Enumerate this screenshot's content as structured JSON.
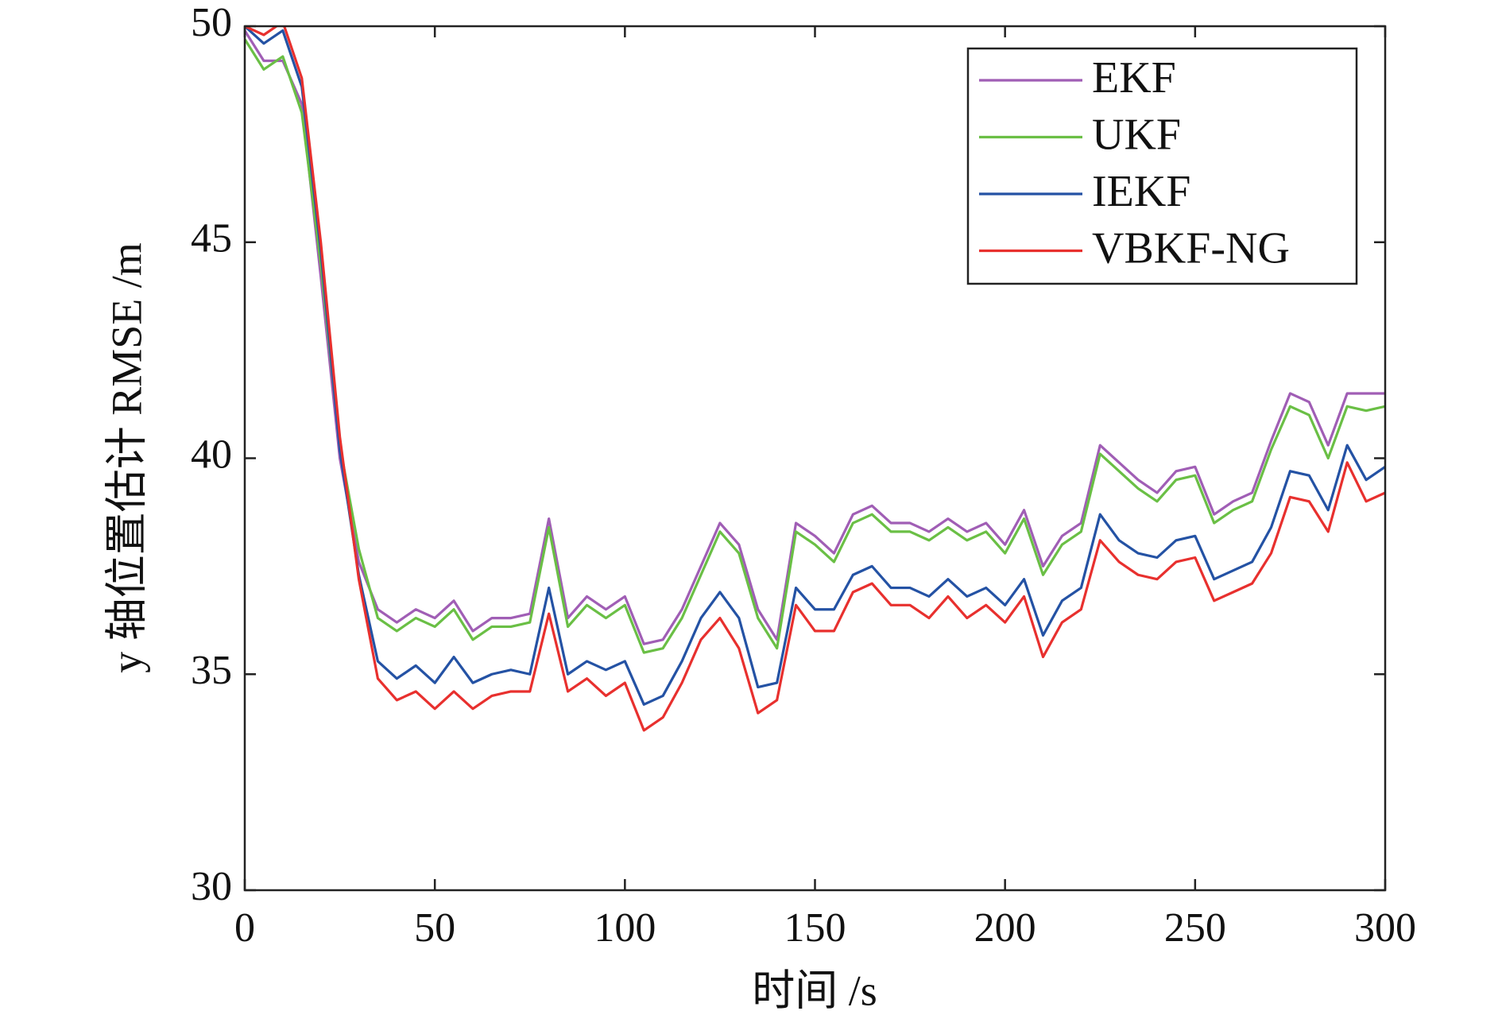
{
  "chart_data": {
    "type": "line",
    "xlabel": "时间 /s",
    "ylabel": "y 轴位置估计 RMSE /m",
    "x": [
      0,
      5,
      10,
      15,
      20,
      25,
      30,
      35,
      40,
      45,
      50,
      55,
      60,
      65,
      70,
      75,
      80,
      85,
      90,
      95,
      100,
      105,
      110,
      115,
      120,
      125,
      130,
      135,
      140,
      145,
      150,
      155,
      160,
      165,
      170,
      175,
      180,
      185,
      190,
      195,
      200,
      205,
      210,
      215,
      220,
      225,
      230,
      235,
      240,
      245,
      250,
      255,
      260,
      265,
      270,
      275,
      280,
      285,
      290,
      295,
      300
    ],
    "series": [
      {
        "name": "EKF",
        "color": "#a05eb5",
        "values": [
          49.9,
          49.2,
          49.2,
          48.2,
          44.2,
          40.0,
          37.6,
          36.5,
          36.2,
          36.5,
          36.3,
          36.7,
          36.0,
          36.3,
          36.3,
          36.4,
          38.6,
          36.3,
          36.8,
          36.5,
          36.8,
          35.7,
          35.8,
          36.5,
          37.5,
          38.5,
          38.0,
          36.5,
          35.8,
          38.5,
          38.2,
          37.8,
          38.7,
          38.9,
          38.5,
          38.5,
          38.3,
          38.6,
          38.3,
          38.5,
          38.0,
          38.8,
          37.5,
          38.2,
          38.5,
          40.3,
          39.9,
          39.5,
          39.2,
          39.7,
          39.8,
          38.7,
          39.0,
          39.2,
          40.4,
          41.5,
          41.3,
          40.3,
          41.5,
          41.5,
          41.5
        ]
      },
      {
        "name": "UKF",
        "color": "#6abf45",
        "values": [
          49.7,
          49.0,
          49.3,
          48.0,
          44.5,
          40.3,
          37.9,
          36.3,
          36.0,
          36.3,
          36.1,
          36.5,
          35.8,
          36.1,
          36.1,
          36.2,
          38.4,
          36.1,
          36.6,
          36.3,
          36.6,
          35.5,
          35.6,
          36.3,
          37.3,
          38.3,
          37.8,
          36.3,
          35.6,
          38.3,
          38.0,
          37.6,
          38.5,
          38.7,
          38.3,
          38.3,
          38.1,
          38.4,
          38.1,
          38.3,
          37.8,
          38.6,
          37.3,
          38.0,
          38.3,
          40.1,
          39.7,
          39.3,
          39.0,
          39.5,
          39.6,
          38.5,
          38.8,
          39.0,
          40.2,
          41.2,
          41.0,
          40.0,
          41.2,
          41.1,
          41.2
        ]
      },
      {
        "name": "IEKF",
        "color": "#2452a4",
        "values": [
          50.0,
          49.6,
          49.9,
          48.6,
          44.8,
          40.2,
          37.3,
          35.3,
          34.9,
          35.2,
          34.8,
          35.4,
          34.8,
          35.0,
          35.1,
          35.0,
          37.0,
          35.0,
          35.3,
          35.1,
          35.3,
          34.3,
          34.5,
          35.3,
          36.3,
          36.9,
          36.3,
          34.7,
          34.8,
          37.0,
          36.5,
          36.5,
          37.3,
          37.5,
          37.0,
          37.0,
          36.8,
          37.2,
          36.8,
          37.0,
          36.6,
          37.2,
          35.9,
          36.7,
          37.0,
          38.7,
          38.1,
          37.8,
          37.7,
          38.1,
          38.2,
          37.2,
          37.4,
          37.6,
          38.4,
          39.7,
          39.6,
          38.8,
          40.3,
          39.5,
          39.8
        ]
      },
      {
        "name": "VBKF-NG",
        "color": "#e8302e",
        "values": [
          50.0,
          49.8,
          50.1,
          48.8,
          45.0,
          40.5,
          37.2,
          34.9,
          34.4,
          34.6,
          34.2,
          34.6,
          34.2,
          34.5,
          34.6,
          34.6,
          36.4,
          34.6,
          34.9,
          34.5,
          34.8,
          33.7,
          34.0,
          34.8,
          35.8,
          36.3,
          35.6,
          34.1,
          34.4,
          36.6,
          36.0,
          36.0,
          36.9,
          37.1,
          36.6,
          36.6,
          36.3,
          36.8,
          36.3,
          36.6,
          36.2,
          36.8,
          35.4,
          36.2,
          36.5,
          38.1,
          37.6,
          37.3,
          37.2,
          37.6,
          37.7,
          36.7,
          36.9,
          37.1,
          37.8,
          39.1,
          39.0,
          38.3,
          39.9,
          39.0,
          39.2
        ]
      }
    ],
    "xlim": [
      0,
      300
    ],
    "xticks": [
      0,
      50,
      100,
      150,
      200,
      250,
      300
    ],
    "ylim": [
      30,
      50
    ],
    "yticks": [
      30,
      35,
      40,
      45,
      50
    ],
    "legend": "upper right",
    "grid": false
  }
}
